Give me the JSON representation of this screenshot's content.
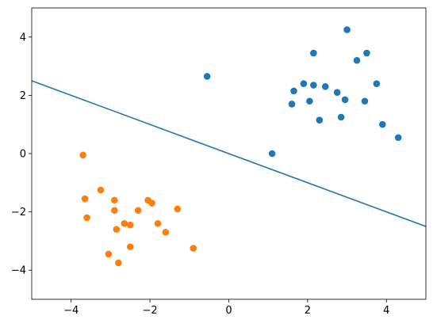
{
  "chart_data": {
    "type": "scatter",
    "title": "",
    "xlabel": "",
    "ylabel": "",
    "xlim": [
      -5,
      5
    ],
    "ylim": [
      -5,
      5
    ],
    "grid": false,
    "x_ticks": [
      -4,
      -2,
      0,
      2,
      4
    ],
    "y_ticks": [
      -4,
      -2,
      0,
      2,
      4
    ],
    "x_tick_labels": [
      "−4",
      "−2",
      "0",
      "2",
      "4"
    ],
    "y_tick_labels": [
      "−4",
      "−2",
      "0",
      "2",
      "4"
    ],
    "series": [
      {
        "color": "#1f77b4",
        "points": [
          [
            -0.55,
            2.65
          ],
          [
            1.1,
            0.0
          ],
          [
            1.6,
            1.7
          ],
          [
            1.65,
            2.15
          ],
          [
            1.9,
            2.4
          ],
          [
            2.05,
            1.8
          ],
          [
            2.15,
            3.45
          ],
          [
            2.15,
            2.35
          ],
          [
            2.3,
            1.15
          ],
          [
            2.45,
            2.3
          ],
          [
            2.75,
            2.1
          ],
          [
            2.85,
            1.25
          ],
          [
            2.95,
            1.85
          ],
          [
            3.0,
            4.25
          ],
          [
            3.25,
            3.2
          ],
          [
            3.45,
            1.8
          ],
          [
            3.5,
            3.45
          ],
          [
            3.75,
            2.4
          ],
          [
            3.9,
            1.0
          ],
          [
            4.3,
            0.55
          ]
        ]
      },
      {
        "color": "#ff7f0e",
        "points": [
          [
            -3.7,
            -0.05
          ],
          [
            -3.65,
            -1.55
          ],
          [
            -3.6,
            -2.2
          ],
          [
            -3.25,
            -1.25
          ],
          [
            -3.05,
            -3.45
          ],
          [
            -2.9,
            -1.6
          ],
          [
            -2.9,
            -1.95
          ],
          [
            -2.85,
            -2.6
          ],
          [
            -2.8,
            -3.75
          ],
          [
            -2.65,
            -2.4
          ],
          [
            -2.5,
            -2.45
          ],
          [
            -2.5,
            -3.2
          ],
          [
            -2.3,
            -1.95
          ],
          [
            -2.05,
            -1.6
          ],
          [
            -1.95,
            -1.7
          ],
          [
            -1.8,
            -2.4
          ],
          [
            -1.6,
            -2.7
          ],
          [
            -1.3,
            -1.9
          ],
          [
            -0.9,
            -3.25
          ]
        ]
      }
    ],
    "line": {
      "color": "#1f77b4",
      "x": [
        -5,
        5
      ],
      "y": [
        2.5,
        -2.5
      ]
    }
  }
}
